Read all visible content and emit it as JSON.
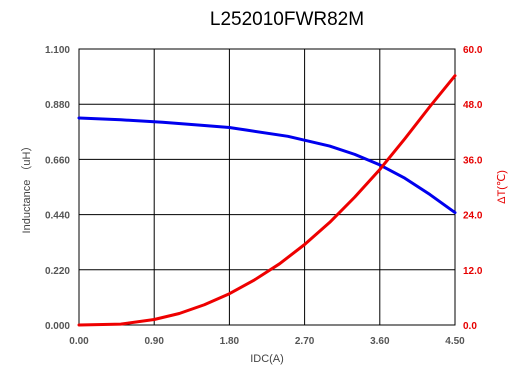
{
  "chart_data": {
    "type": "line",
    "title": "L252010FWR82M",
    "xlabel": "IDC(A)",
    "ylabel_left": "Inductance （uH）",
    "ylabel_right": "ΔT(℃)",
    "x_ticks": [
      "0.00",
      "0.90",
      "1.80",
      "2.70",
      "3.60",
      "4.50"
    ],
    "y_left_ticks": [
      "0.000",
      "0.220",
      "0.440",
      "0.660",
      "0.880",
      "1.100"
    ],
    "y_right_ticks": [
      "0.0",
      "12.0",
      "24.0",
      "36.0",
      "48.0",
      "60.0"
    ],
    "xlim": [
      0,
      4.5
    ],
    "y_left_lim": [
      0,
      1.1
    ],
    "y_right_lim": [
      0,
      60
    ],
    "grid": true,
    "series": [
      {
        "axis": "left",
        "color": "#0000ee",
        "x": [
          0,
          0.5,
          1.0,
          1.5,
          1.8,
          2.0,
          2.5,
          3.0,
          3.3,
          3.6,
          3.9,
          4.2,
          4.5
        ],
        "values": [
          0.825,
          0.818,
          0.808,
          0.795,
          0.787,
          0.777,
          0.752,
          0.713,
          0.68,
          0.638,
          0.585,
          0.52,
          0.448
        ]
      },
      {
        "axis": "right",
        "color": "#ee0000",
        "x": [
          0,
          0.5,
          0.9,
          1.2,
          1.5,
          1.8,
          2.1,
          2.4,
          2.7,
          3.0,
          3.3,
          3.6,
          3.9,
          4.2,
          4.5
        ],
        "values": [
          0,
          0.2,
          1.2,
          2.5,
          4.4,
          6.8,
          9.8,
          13.3,
          17.5,
          22.3,
          27.8,
          33.8,
          40.5,
          47.5,
          54.2
        ]
      }
    ]
  }
}
